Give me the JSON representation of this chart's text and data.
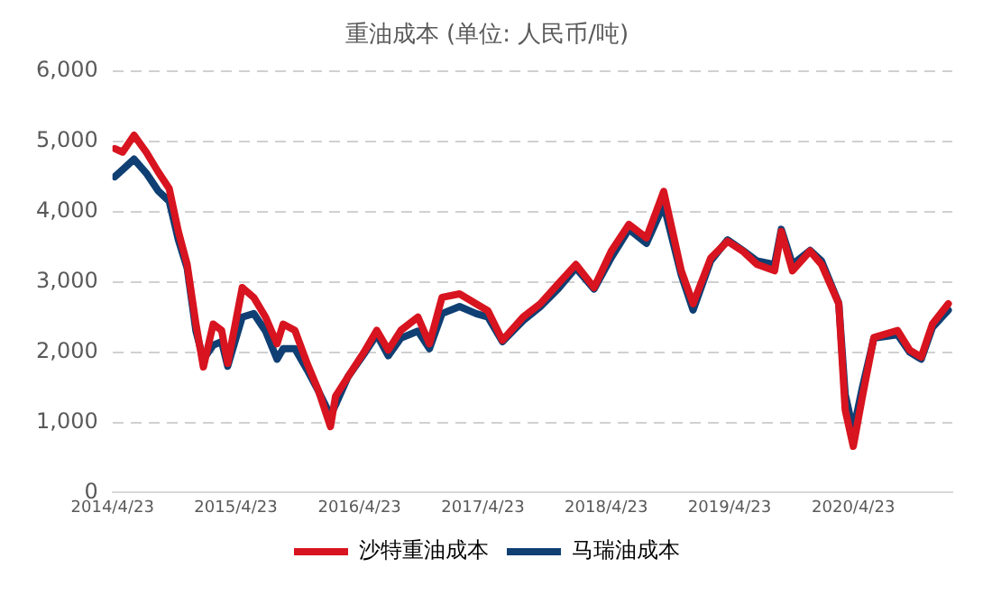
{
  "chart_data": {
    "type": "line",
    "title": "重油成本 (单位: 人民币/吨)",
    "x": [
      "2014-04-30",
      "2014-05-23",
      "2014-06-26",
      "2014-08-01",
      "2014-09-05",
      "2014-10-08",
      "2014-11-04",
      "2014-11-30",
      "2014-12-26",
      "2015-01-17",
      "2015-02-15",
      "2015-03-12",
      "2015-03-30",
      "2015-05-12",
      "2015-06-15",
      "2015-07-20",
      "2015-08-23",
      "2015-09-10",
      "2015-10-15",
      "2015-11-20",
      "2015-12-23",
      "2016-01-28",
      "2016-02-12",
      "2016-03-20",
      "2016-05-10",
      "2016-06-13",
      "2016-07-17",
      "2016-08-23",
      "2016-10-13",
      "2016-11-16",
      "2016-12-23",
      "2017-02-13",
      "2017-04-03",
      "2017-05-08",
      "2017-06-20",
      "2017-08-20",
      "2017-10-10",
      "2017-12-01",
      "2018-01-23",
      "2018-03-18",
      "2018-05-08",
      "2018-06-29",
      "2018-08-20",
      "2018-10-10",
      "2018-12-01",
      "2019-01-05",
      "2019-02-26",
      "2019-04-17",
      "2019-06-01",
      "2019-07-13",
      "2019-09-03",
      "2019-09-23",
      "2019-10-26",
      "2019-12-17",
      "2020-01-20",
      "2020-03-11",
      "2020-03-30",
      "2020-04-23",
      "2020-05-20",
      "2020-06-23",
      "2020-09-01",
      "2020-10-07",
      "2020-11-10",
      "2020-12-13",
      "2021-01-29"
    ],
    "series": [
      {
        "name": "沙特重油成本",
        "color": "#d7141f",
        "values": [
          4900,
          4850,
          5090,
          4850,
          4570,
          4330,
          3720,
          3250,
          2400,
          1790,
          2400,
          2310,
          1840,
          2920,
          2780,
          2500,
          2120,
          2400,
          2310,
          1840,
          1460,
          940,
          1370,
          1650,
          2030,
          2310,
          2030,
          2310,
          2500,
          2120,
          2780,
          2830,
          2690,
          2590,
          2170,
          2500,
          2690,
          2970,
          3250,
          2920,
          3440,
          3820,
          3630,
          4290,
          3160,
          2690,
          3340,
          3580,
          3440,
          3250,
          3160,
          3720,
          3160,
          3440,
          3250,
          2690,
          1180,
          660,
          1370,
          2210,
          2310,
          2030,
          1930,
          2400,
          2690
        ]
      },
      {
        "name": "马瑞油成本",
        "color": "#0f3f73",
        "values": [
          4500,
          4600,
          4750,
          4550,
          4300,
          4150,
          3600,
          3200,
          2300,
          1900,
          2100,
          2150,
          1800,
          2500,
          2550,
          2300,
          1900,
          2050,
          2050,
          1750,
          1450,
          1100,
          1250,
          1650,
          2000,
          2250,
          1950,
          2200,
          2300,
          2050,
          2550,
          2650,
          2550,
          2500,
          2150,
          2450,
          2650,
          2900,
          3200,
          2900,
          3350,
          3750,
          3550,
          4100,
          3100,
          2600,
          3300,
          3600,
          3450,
          3300,
          3250,
          3750,
          3250,
          3450,
          3300,
          2700,
          1400,
          880,
          1500,
          2200,
          2250,
          2000,
          1900,
          2350,
          2600
        ]
      }
    ],
    "xlim": [
      "2014-04-23",
      "2021-02-10"
    ],
    "xticks": [
      {
        "value": "2014-04-23",
        "label": "2014/4/23"
      },
      {
        "value": "2015-04-23",
        "label": "2015/4/23"
      },
      {
        "value": "2016-04-23",
        "label": "2016/4/23"
      },
      {
        "value": "2017-04-23",
        "label": "2017/4/23"
      },
      {
        "value": "2018-04-23",
        "label": "2018/4/23"
      },
      {
        "value": "2019-04-23",
        "label": "2019/4/23"
      },
      {
        "value": "2020-04-23",
        "label": "2020/4/23"
      }
    ],
    "ylim": [
      0,
      6000
    ],
    "yticks": [
      {
        "value": 0,
        "label": "0"
      },
      {
        "value": 1000,
        "label": "1,000"
      },
      {
        "value": 2000,
        "label": "2,000"
      },
      {
        "value": 3000,
        "label": "3,000"
      },
      {
        "value": 4000,
        "label": "4,000"
      },
      {
        "value": 5000,
        "label": "5,000"
      },
      {
        "value": 6000,
        "label": "6,000"
      }
    ],
    "grid": "y",
    "legend": "bottom",
    "marker": "none",
    "line_style": "solid"
  }
}
